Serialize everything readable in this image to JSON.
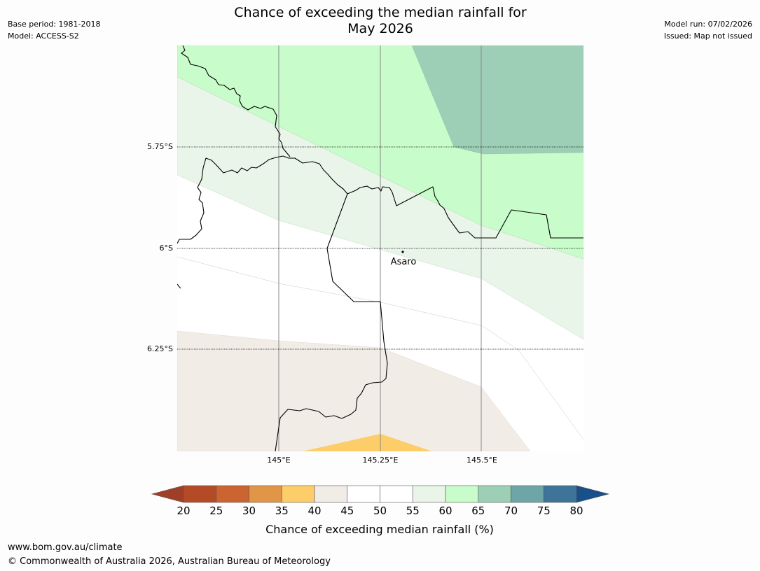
{
  "title_line1": "Chance of exceeding the median rainfall for",
  "title_line2": "May 2026",
  "base_period": "Base period: 1981-2018",
  "model": "Model: ACCESS-S2",
  "model_run": "Model run: 07/02/2026",
  "issued": "Issued: Map not issued",
  "map": {
    "lat_labels": [
      "5.75°S",
      "6°S",
      "6.25°S"
    ],
    "lon_labels": [
      "145°E",
      "145.25°E",
      "145.5°E"
    ],
    "place": {
      "name": "Asaro"
    }
  },
  "legend": {
    "ticks": [
      "20",
      "25",
      "30",
      "35",
      "40",
      "45",
      "50",
      "55",
      "60",
      "65",
      "70",
      "75",
      "80"
    ],
    "title": "Chance of exceeding median rainfall (%)",
    "colors": {
      "below20": "#a03f27",
      "20-25": "#b44b26",
      "25-30": "#cb6431",
      "30-35": "#e19546",
      "35-40": "#fdcd6a",
      "40-45": "#f1ece6",
      "45-50": "#ffffff",
      "50-55": "#ffffff",
      "55-60": "#e9f5e8",
      "60-65": "#c8fcca",
      "65-70": "#9dcfb6",
      "70-75": "#6ea5a7",
      "75-80": "#3e7497",
      "above80": "#17508a"
    }
  },
  "footer_url": "www.bom.gov.au/climate",
  "footer_copyright": "© Commonwealth of Australia 2026, Australian Bureau of Meteorology"
}
